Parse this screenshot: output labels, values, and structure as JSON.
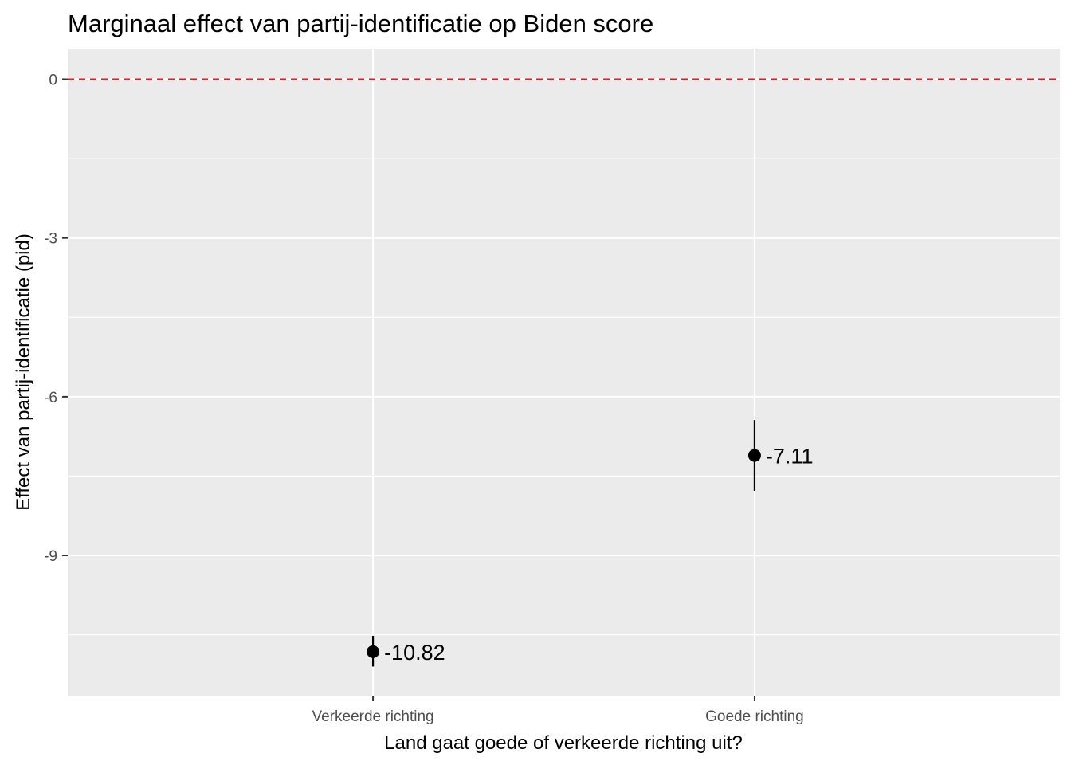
{
  "chart_data": {
    "type": "scatter",
    "title": "Marginaal effect van partij-identificatie op Biden score",
    "xlabel": "Land gaat goede of verkeerde richting uit?",
    "ylabel": "Effect van partij-identificatie (pid)",
    "categories": [
      "Verkeerde richting",
      "Goede richting"
    ],
    "points": [
      {
        "category": "Verkeerde richting",
        "value": -10.82,
        "lower": -11.1,
        "upper": -10.52,
        "label": "-10.82"
      },
      {
        "category": "Goede richting",
        "value": -7.11,
        "lower": -7.78,
        "upper": -6.44,
        "label": "-7.11"
      }
    ],
    "ylim": [
      -11.65,
      0.58
    ],
    "yticks": [
      0,
      -3,
      -6,
      -9
    ],
    "ytick_labels": [
      "0",
      "-3",
      "-6",
      "-9"
    ],
    "reference_line": {
      "value": 0,
      "style": "dashed",
      "color": "#e41a1c"
    },
    "grid": true,
    "panel_background": "#ebebeb",
    "grid_color": "#ffffff",
    "point_color": "#000000"
  }
}
